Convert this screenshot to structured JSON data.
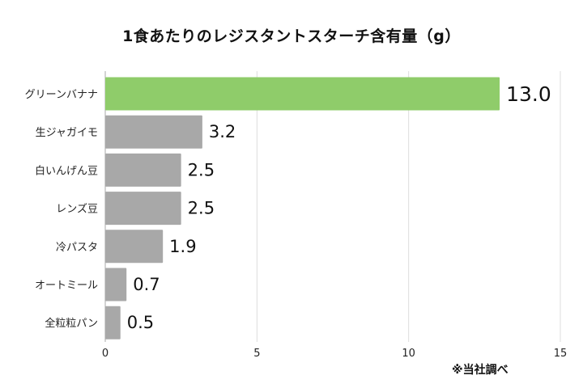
{
  "chart_data": {
    "type": "bar",
    "orientation": "horizontal",
    "title": "1食あたりのレジスタントスターチ含有量（g）",
    "categories": [
      "グリーンバナナ",
      "生ジャガイモ",
      "白いんげん豆",
      "レンズ豆",
      "冷パスタ",
      "オートミール",
      "全粒粒パン"
    ],
    "values": [
      13.0,
      3.2,
      2.5,
      2.5,
      1.9,
      0.7,
      0.5
    ],
    "value_labels": [
      "13.0",
      "3.2",
      "2.5",
      "2.5",
      "1.9",
      "0.7",
      "0.5"
    ],
    "xlim": [
      0,
      15
    ],
    "x_ticks": [
      0,
      5,
      10,
      15
    ],
    "x_tick_labels": [
      "0",
      "5",
      "10",
      "15"
    ],
    "grid": "vertical",
    "legend": "none",
    "colors": {
      "highlight": "#8fcc6a",
      "bar": "#a8a8a8",
      "grid": "#dddddd",
      "axis": "#aaaaaa"
    },
    "highlight_index": 0
  },
  "source_note": "※当社調べ"
}
